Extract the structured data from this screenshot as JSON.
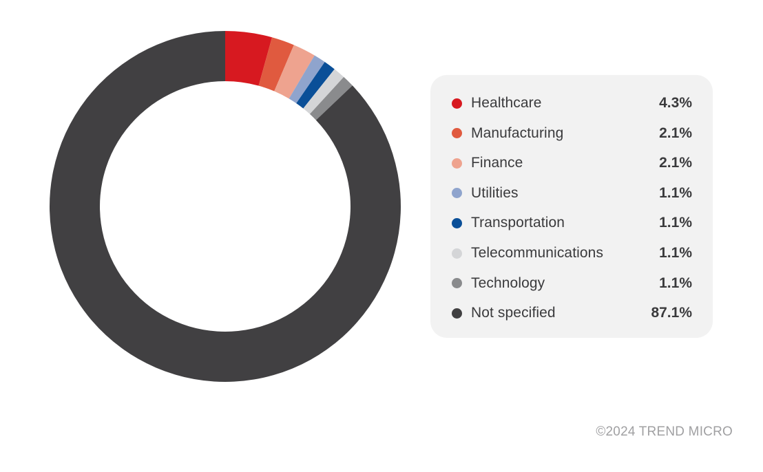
{
  "chart_data": {
    "type": "pie",
    "title": "",
    "categories": [
      "Healthcare",
      "Manufacturing",
      "Finance",
      "Utilities",
      "Transportation",
      "Telecommunications",
      "Technology",
      "Not specified"
    ],
    "values": [
      4.3,
      2.1,
      2.1,
      1.1,
      1.1,
      1.1,
      1.1,
      87.1
    ],
    "value_labels": [
      "4.3%",
      "2.1%",
      "2.1%",
      "1.1%",
      "1.1%",
      "1.1%",
      "1.1%",
      "87.1%"
    ],
    "colors": [
      "#d71920",
      "#e05a3f",
      "#eea38f",
      "#8fa4cd",
      "#0a4f98",
      "#d4d5d7",
      "#8a8b8d",
      "#414042"
    ],
    "donut": true,
    "legend_position": "right"
  },
  "footer": {
    "copyright": "©2024 TREND MICRO"
  }
}
